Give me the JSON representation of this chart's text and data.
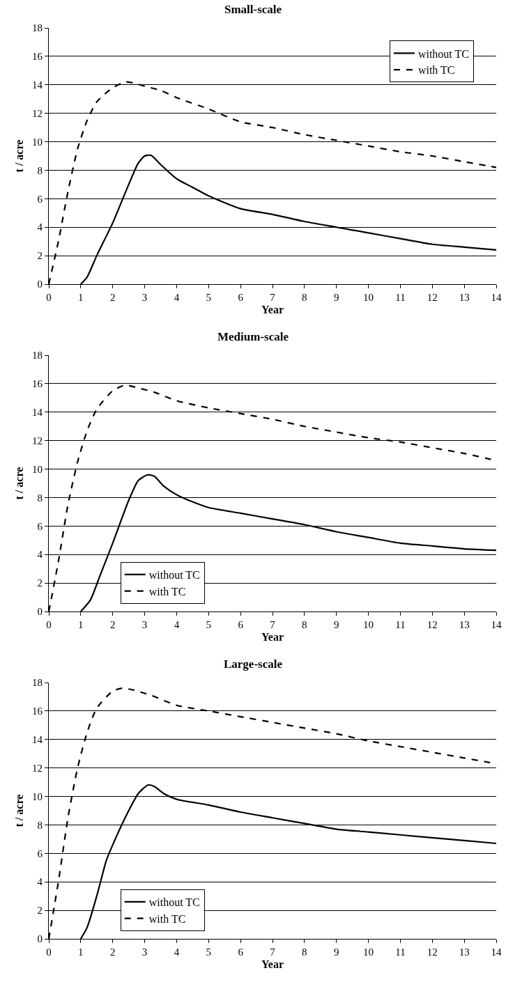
{
  "chart_data": [
    {
      "type": "line",
      "title": "Small-scale",
      "xlabel": "Year",
      "ylabel": "t / acre",
      "xlim": [
        0,
        14
      ],
      "xticks": [
        0,
        1,
        2,
        3,
        4,
        5,
        6,
        7,
        8,
        9,
        10,
        11,
        12,
        13,
        14
      ],
      "ylim": [
        0,
        18
      ],
      "yticks": [
        0,
        2,
        4,
        6,
        8,
        10,
        12,
        14,
        16,
        18
      ],
      "grid": "y",
      "legend": "top right",
      "series": [
        {
          "name": "without TC",
          "color": "#000000",
          "line_style": "solid",
          "x": [
            1,
            1.2,
            1.5,
            2,
            2.5,
            2.8,
            3,
            3.2,
            3.5,
            4,
            4.5,
            5,
            6,
            7,
            8,
            9,
            10,
            11,
            12,
            13,
            14
          ],
          "values": [
            0,
            0.5,
            2,
            4.3,
            7,
            8.5,
            9,
            9.05,
            8.4,
            7.4,
            6.8,
            6.2,
            5.3,
            4.9,
            4.4,
            4,
            3.6,
            3.2,
            2.8,
            2.6,
            2.4
          ]
        },
        {
          "name": "with TC",
          "color": "#000000",
          "line_style": "dashed",
          "x": [
            0,
            0.3,
            0.6,
            0.9,
            1.2,
            1.5,
            2,
            2.4,
            2.7,
            3,
            3.5,
            4,
            5,
            6,
            7,
            8,
            9,
            10,
            11,
            12,
            13,
            14
          ],
          "values": [
            0,
            3,
            6.5,
            9.5,
            11.5,
            12.8,
            13.8,
            14.2,
            14.1,
            13.9,
            13.6,
            13.1,
            12.3,
            11.4,
            11,
            10.5,
            10.1,
            9.7,
            9.3,
            9,
            8.6,
            8.2
          ]
        }
      ]
    },
    {
      "type": "line",
      "title": "Medium-scale",
      "xlabel": "Year",
      "ylabel": "t / acre",
      "xlim": [
        0,
        14
      ],
      "xticks": [
        0,
        1,
        2,
        3,
        4,
        5,
        6,
        7,
        8,
        9,
        10,
        11,
        12,
        13,
        14
      ],
      "ylim": [
        0,
        18
      ],
      "yticks": [
        0,
        2,
        4,
        6,
        8,
        10,
        12,
        14,
        16,
        18
      ],
      "grid": "y",
      "legend": "bottom left",
      "series": [
        {
          "name": "without TC",
          "color": "#000000",
          "line_style": "solid",
          "x": [
            1,
            1.3,
            1.6,
            2,
            2.5,
            2.8,
            3.1,
            3.3,
            3.6,
            4,
            4.5,
            5,
            6,
            7,
            8,
            9,
            10,
            11,
            12,
            13,
            14
          ],
          "values": [
            0,
            0.8,
            2.5,
            4.8,
            7.8,
            9.2,
            9.6,
            9.5,
            8.8,
            8.2,
            7.7,
            7.3,
            6.9,
            6.5,
            6.1,
            5.6,
            5.2,
            4.8,
            4.6,
            4.4,
            4.3
          ]
        },
        {
          "name": "with TC",
          "color": "#000000",
          "line_style": "dashed",
          "x": [
            0,
            0.3,
            0.6,
            0.9,
            1.2,
            1.5,
            2,
            2.4,
            2.8,
            3.3,
            4,
            5,
            6,
            7,
            8,
            9,
            10,
            11,
            12,
            13,
            14
          ],
          "values": [
            0,
            3.5,
            7.5,
            10.5,
            12.7,
            14.2,
            15.5,
            15.9,
            15.7,
            15.4,
            14.8,
            14.3,
            13.9,
            13.5,
            13,
            12.6,
            12.2,
            11.9,
            11.5,
            11.1,
            10.6
          ]
        }
      ]
    },
    {
      "type": "line",
      "title": "Large-scale",
      "xlabel": "Year",
      "ylabel": "t / acre",
      "xlim": [
        0,
        14
      ],
      "xticks": [
        0,
        1,
        2,
        3,
        4,
        5,
        6,
        7,
        8,
        9,
        10,
        11,
        12,
        13,
        14
      ],
      "ylim": [
        0,
        18
      ],
      "yticks": [
        0,
        2,
        4,
        6,
        8,
        10,
        12,
        14,
        16,
        18
      ],
      "grid": "y",
      "legend": "bottom left",
      "series": [
        {
          "name": "without TC",
          "color": "#000000",
          "line_style": "solid",
          "x": [
            1,
            1.2,
            1.5,
            1.8,
            2,
            2.5,
            2.8,
            3.1,
            3.3,
            3.6,
            4,
            5,
            6,
            7,
            8,
            9,
            10,
            11,
            12,
            13,
            14
          ],
          "values": [
            0,
            0.8,
            3,
            5.5,
            6.6,
            9,
            10.2,
            10.8,
            10.7,
            10.2,
            9.8,
            9.4,
            8.9,
            8.5,
            8.1,
            7.7,
            7.5,
            7.3,
            7.1,
            6.9,
            6.7
          ]
        },
        {
          "name": "with TC",
          "color": "#000000",
          "line_style": "dashed",
          "x": [
            0,
            0.3,
            0.6,
            0.9,
            1.2,
            1.5,
            2,
            2.3,
            2.6,
            3.2,
            4,
            5,
            6,
            7,
            8,
            9,
            10,
            11,
            12,
            13,
            14
          ],
          "values": [
            0,
            4,
            8.5,
            12,
            14.5,
            16.2,
            17.4,
            17.6,
            17.5,
            17.1,
            16.4,
            16,
            15.6,
            15.2,
            14.8,
            14.4,
            13.9,
            13.5,
            13.1,
            12.7,
            12.3
          ]
        }
      ]
    }
  ]
}
